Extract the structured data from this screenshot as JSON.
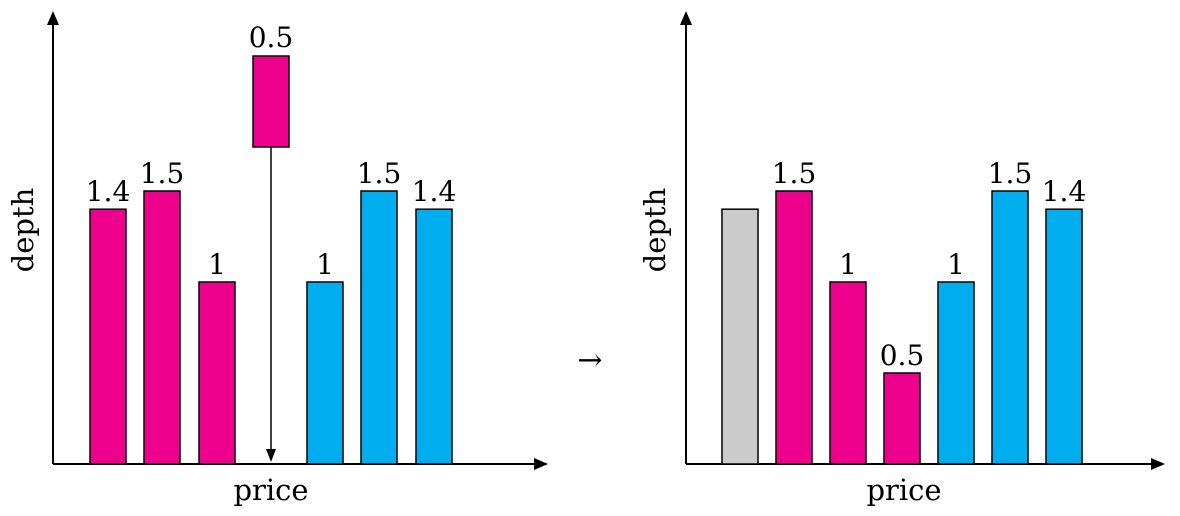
{
  "colors": {
    "magenta": "#ec008c",
    "cyan": "#00aeef",
    "gray": "#cccccc",
    "stroke": "#000000"
  },
  "transition_symbol": "→",
  "panels": [
    {
      "xlabel": "price",
      "ylabel": "depth",
      "bars": [
        {
          "value": 1.4,
          "label": "1.4",
          "color": "magenta"
        },
        {
          "value": 1.5,
          "label": "1.5",
          "color": "magenta"
        },
        {
          "value": 1.0,
          "label": "1",
          "color": "magenta"
        },
        {
          "value": 1.0,
          "label": "1",
          "color": "cyan"
        },
        {
          "value": 1.5,
          "label": "1.5",
          "color": "cyan"
        },
        {
          "value": 1.4,
          "label": "1.4",
          "color": "cyan"
        }
      ],
      "incoming_order": {
        "value": 0.5,
        "label": "0.5",
        "color": "magenta"
      }
    },
    {
      "xlabel": "price",
      "ylabel": "depth",
      "bars": [
        {
          "value": 1.4,
          "label": "",
          "color": "gray"
        },
        {
          "value": 1.5,
          "label": "1.5",
          "color": "magenta"
        },
        {
          "value": 1.0,
          "label": "1",
          "color": "magenta"
        },
        {
          "value": 0.5,
          "label": "0.5",
          "color": "magenta"
        },
        {
          "value": 1.0,
          "label": "1",
          "color": "cyan"
        },
        {
          "value": 1.5,
          "label": "1.5",
          "color": "cyan"
        },
        {
          "value": 1.4,
          "label": "1.4",
          "color": "cyan"
        }
      ]
    }
  ]
}
